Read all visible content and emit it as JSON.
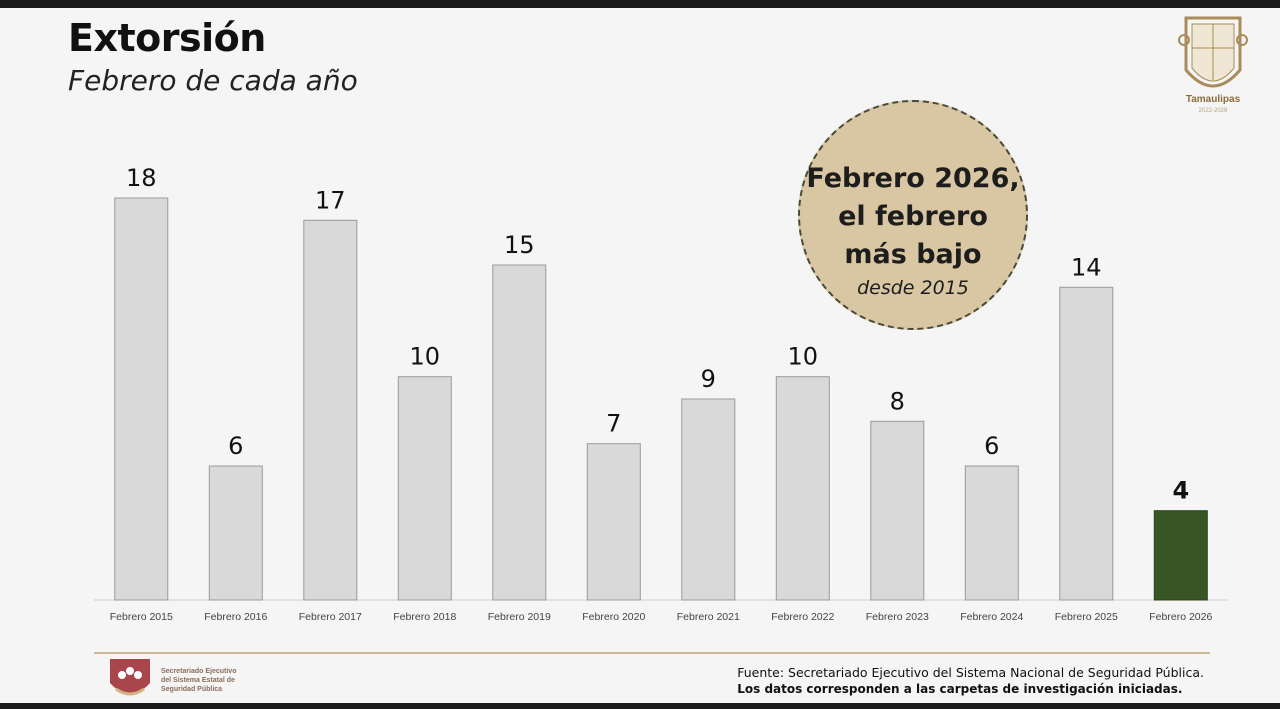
{
  "title": "Extorsión",
  "subtitle": "Febrero de cada año",
  "logo": {
    "label": "Tamaulipas",
    "sub": "2022-2028"
  },
  "badge": {
    "line1": "Febrero 2026,",
    "line2": "el febrero",
    "line3": "más bajo",
    "line4": "desde 2015",
    "color": "#d9c7a3"
  },
  "footer": {
    "org": [
      "Secretariado Ejecutivo",
      "del Sistema Estatal de",
      "Seguridad Pública"
    ],
    "source": "Fuente: Secretariado Ejecutivo del Sistema Nacional de Seguridad Pública.",
    "note": "Los datos corresponden a las carpetas de investigación iniciadas."
  },
  "chart_data": {
    "type": "bar",
    "categories": [
      "Febrero 2015",
      "Febrero 2016",
      "Febrero 2017",
      "Febrero 2018",
      "Febrero 2019",
      "Febrero 2020",
      "Febrero 2021",
      "Febrero 2022",
      "Febrero 2023",
      "Febrero 2024",
      "Febrero 2025",
      "Febrero 2026"
    ],
    "values": [
      18,
      6,
      17,
      10,
      15,
      7,
      9,
      10,
      8,
      6,
      14,
      4
    ],
    "highlight_index": 11,
    "bar_color": "#d9d9d9",
    "highlight_color": "#375623",
    "ylim": [
      0,
      18
    ],
    "grid": false,
    "legend": "none"
  }
}
